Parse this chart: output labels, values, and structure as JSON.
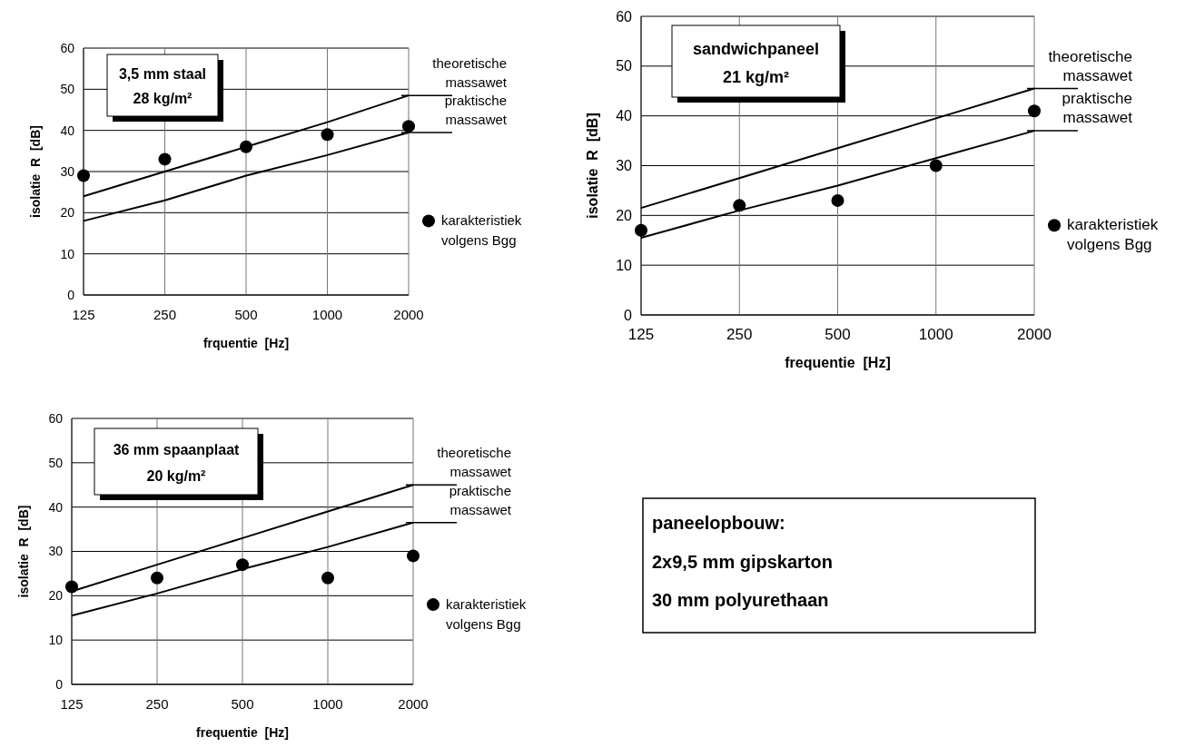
{
  "chart_data": [
    {
      "type": "line",
      "title": "3,5 mm staal",
      "subtitle": "28 kg/m²",
      "xlabel": "frquentie  [Hz]",
      "ylabel": "isolatie  R  [dB]",
      "categories": [
        "125",
        "250",
        "500",
        "1000",
        "2000"
      ],
      "ylim": [
        0,
        60
      ],
      "yticks": [
        0,
        10,
        20,
        30,
        40,
        50,
        60
      ],
      "grid": true,
      "legend": "right",
      "series": [
        {
          "name": "theoretische massawet",
          "type": "line",
          "color": "#000000",
          "values": [
            24,
            30,
            36,
            42,
            48.5
          ]
        },
        {
          "name": "praktische massawet",
          "type": "line",
          "color": "#000000",
          "values": [
            18,
            23,
            29,
            34,
            39.5
          ]
        },
        {
          "name": "karakteristiek volgens Bgg",
          "type": "scatter",
          "marker": "circle",
          "color": "#000000",
          "values": [
            29,
            33,
            36,
            39,
            41
          ]
        }
      ]
    },
    {
      "type": "line",
      "title": "sandwichpaneel",
      "subtitle": "21 kg/m²",
      "xlabel": "frequentie  [Hz]",
      "ylabel": "isolatie  R  [dB]",
      "categories": [
        "125",
        "250",
        "500",
        "1000",
        "2000"
      ],
      "ylim": [
        0,
        60
      ],
      "yticks": [
        0,
        10,
        20,
        30,
        40,
        50,
        60
      ],
      "grid": true,
      "legend": "right",
      "series": [
        {
          "name": "theoretische massawet",
          "type": "line",
          "color": "#000000",
          "values": [
            21.5,
            27.5,
            33.5,
            39.5,
            45.5
          ]
        },
        {
          "name": "praktische massawet",
          "type": "line",
          "color": "#000000",
          "values": [
            15.5,
            21,
            26,
            31.5,
            37
          ]
        },
        {
          "name": "karakteristiek volgens Bgg",
          "type": "scatter",
          "marker": "circle",
          "color": "#000000",
          "values": [
            17,
            22,
            23,
            30,
            41
          ]
        }
      ]
    },
    {
      "type": "line",
      "title": "36 mm spaanplaat",
      "subtitle": "20 kg/m²",
      "xlabel": "frequentie  [Hz]",
      "ylabel": "isolatie  R  [dB]",
      "categories": [
        "125",
        "250",
        "500",
        "1000",
        "2000"
      ],
      "ylim": [
        0,
        60
      ],
      "yticks": [
        0,
        10,
        20,
        30,
        40,
        50,
        60
      ],
      "grid": true,
      "legend": "right",
      "series": [
        {
          "name": "theoretische massawet",
          "type": "line",
          "color": "#000000",
          "values": [
            21,
            27,
            33,
            39,
            45
          ]
        },
        {
          "name": "praktische massawet",
          "type": "line",
          "color": "#000000",
          "values": [
            15.5,
            20.5,
            26,
            31,
            36.5
          ]
        },
        {
          "name": "karakteristiek volgens Bgg",
          "type": "scatter",
          "marker": "circle",
          "color": "#000000",
          "values": [
            22,
            24,
            27,
            24,
            29
          ]
        }
      ]
    },
    {
      "type": "other",
      "title": "paneelopbouw:",
      "annotations": [
        "2x9,5 mm gipskarton",
        "30 mm polyurethaan"
      ]
    }
  ]
}
